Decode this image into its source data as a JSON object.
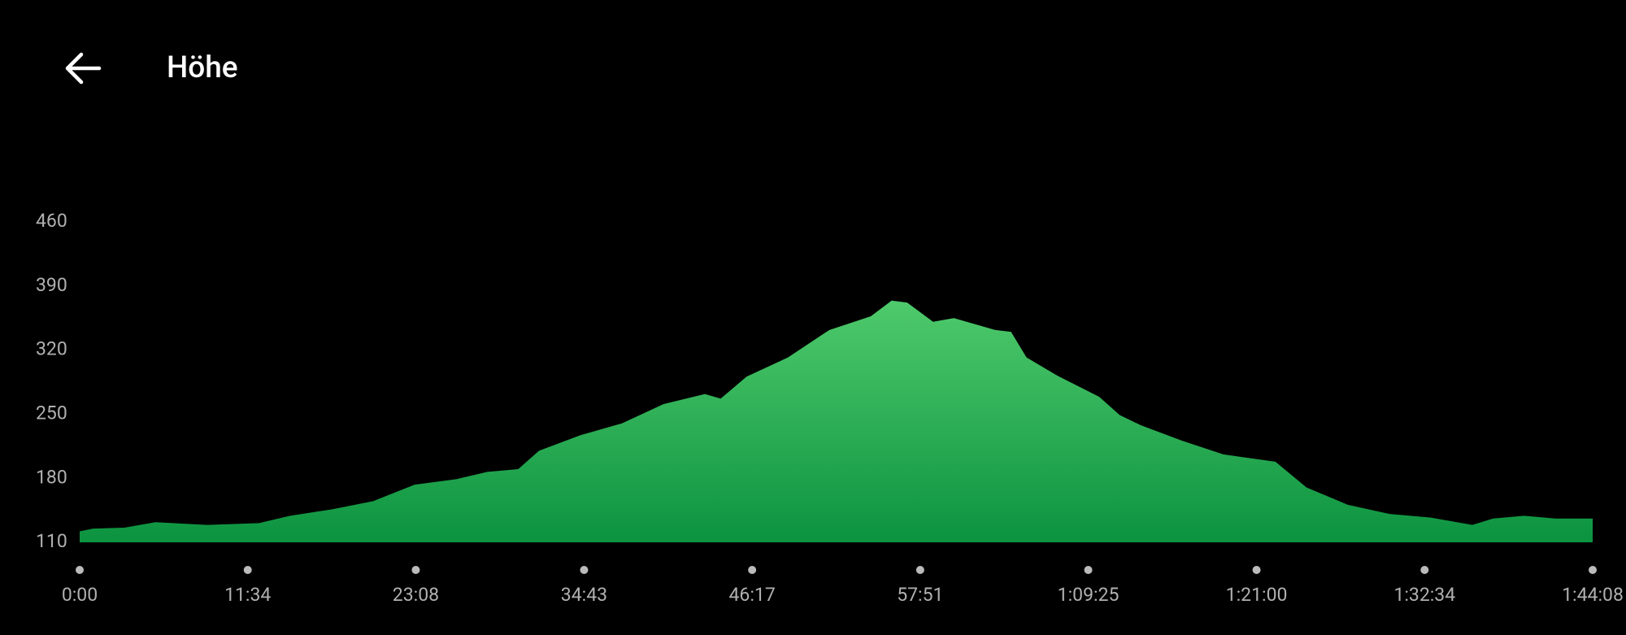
{
  "header": {
    "title": "Höhe"
  },
  "chart_data": {
    "type": "area",
    "x": [
      0,
      56,
      184,
      313,
      527,
      741,
      869,
      1041,
      1212,
      1383,
      1555,
      1683,
      1811,
      1897,
      2068,
      2240,
      2411,
      2582,
      2647,
      2754,
      2925,
      3096,
      3267,
      3353,
      3417,
      3524,
      3610,
      3781,
      3846,
      3910,
      4038,
      4210,
      4295,
      4381,
      4552,
      4723,
      4938,
      5066,
      5237,
      5409,
      5580,
      5751,
      5837,
      5965,
      6094,
      6248
    ],
    "values": [
      122,
      125,
      126,
      132,
      129,
      131,
      139,
      146,
      155,
      173,
      179,
      187,
      190,
      210,
      227,
      240,
      261,
      272,
      267,
      291,
      312,
      342,
      357,
      374,
      372,
      351,
      355,
      342,
      340,
      312,
      292,
      269,
      249,
      238,
      221,
      206,
      198,
      170,
      151,
      141,
      137,
      129,
      136,
      139,
      136,
      136
    ],
    "color": "#1aa34a",
    "xlim": [
      0,
      6248
    ],
    "xticks": [
      {
        "value": 0,
        "label": "0:00"
      },
      {
        "value": 694,
        "label": "11:34"
      },
      {
        "value": 1388,
        "label": "23:08"
      },
      {
        "value": 2083,
        "label": "34:43"
      },
      {
        "value": 2777,
        "label": "46:17"
      },
      {
        "value": 3471,
        "label": "57:51"
      },
      {
        "value": 4165,
        "label": "1:09:25"
      },
      {
        "value": 4860,
        "label": "1:21:00"
      },
      {
        "value": 5554,
        "label": "1:32:34"
      },
      {
        "value": 6248,
        "label": "1:44:08"
      }
    ],
    "ylim": [
      110,
      460
    ],
    "yticks": [
      110,
      180,
      250,
      320,
      390,
      460
    ]
  }
}
